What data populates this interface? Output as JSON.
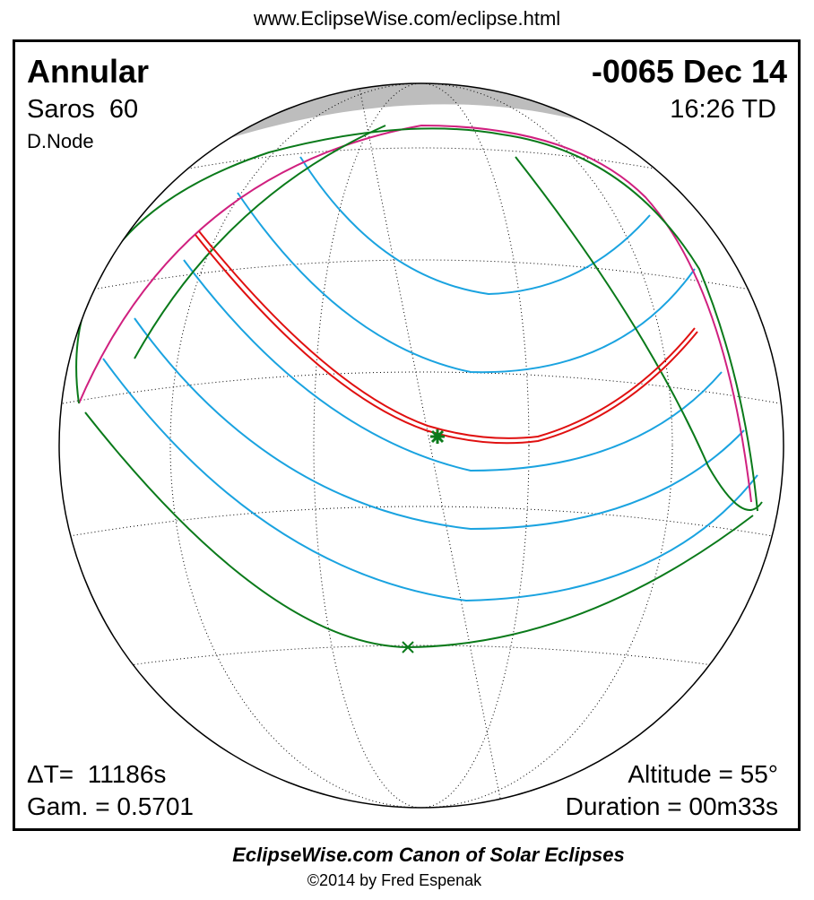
{
  "header": {
    "url": "www.EclipseWise.com/eclipse.html"
  },
  "eclipse": {
    "type": "Annular",
    "date": "-0065 Dec 14",
    "saros": "Saros  60",
    "node": "D.Node",
    "time": "16:26 TD",
    "delta_t": "ΔT=  11186s",
    "gamma": "Gam. = 0.5701",
    "altitude": "Altitude = 55°",
    "duration": "Duration = 00m33s"
  },
  "footer": {
    "title": "EclipseWise.com Canon of Solar Eclipses",
    "copyright": "©2014 by Fred Espenak"
  }
}
